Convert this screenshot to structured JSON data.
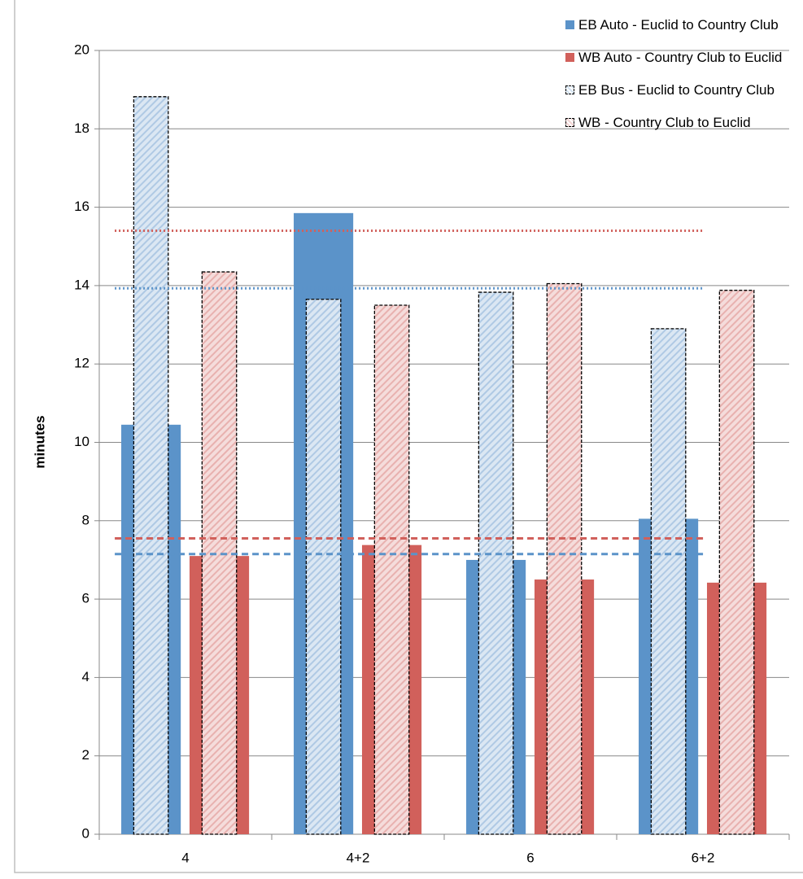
{
  "chart_data": {
    "type": "bar",
    "y_label": "minutes",
    "categories": [
      "4",
      "4+2",
      "6",
      "6+2"
    ],
    "series": [
      {
        "name": "EB Auto - Euclid to Country Club",
        "color": "#5b93c9",
        "hatched": false,
        "values": [
          10.45,
          15.85,
          7.0,
          8.05
        ]
      },
      {
        "name": "WB Auto - Country Club to Euclid",
        "color": "#d1605b",
        "hatched": false,
        "values": [
          7.1,
          7.38,
          6.5,
          6.42
        ]
      },
      {
        "name": "EB Bus - Euclid to Country Club",
        "color": "#5b93c9",
        "hatched": true,
        "values": [
          18.82,
          13.65,
          13.83,
          12.9
        ]
      },
      {
        "name": "WB - Country Club to Euclid",
        "color": "#d1605b",
        "hatched": true,
        "values": [
          14.35,
          13.5,
          14.05,
          13.88
        ]
      }
    ],
    "reference_lines": [
      {
        "value": 15.4,
        "color": "#d1605b",
        "style": "dotted"
      },
      {
        "value": 13.93,
        "color": "#5b93c9",
        "style": "dotted"
      },
      {
        "value": 7.55,
        "color": "#d1605b",
        "style": "dashed"
      },
      {
        "value": 7.15,
        "color": "#5b93c9",
        "style": "dashed"
      }
    ],
    "ylim": [
      0,
      20
    ],
    "yticks": [
      0,
      2,
      4,
      6,
      8,
      10,
      12,
      14,
      16,
      18,
      20
    ],
    "grid": true
  }
}
